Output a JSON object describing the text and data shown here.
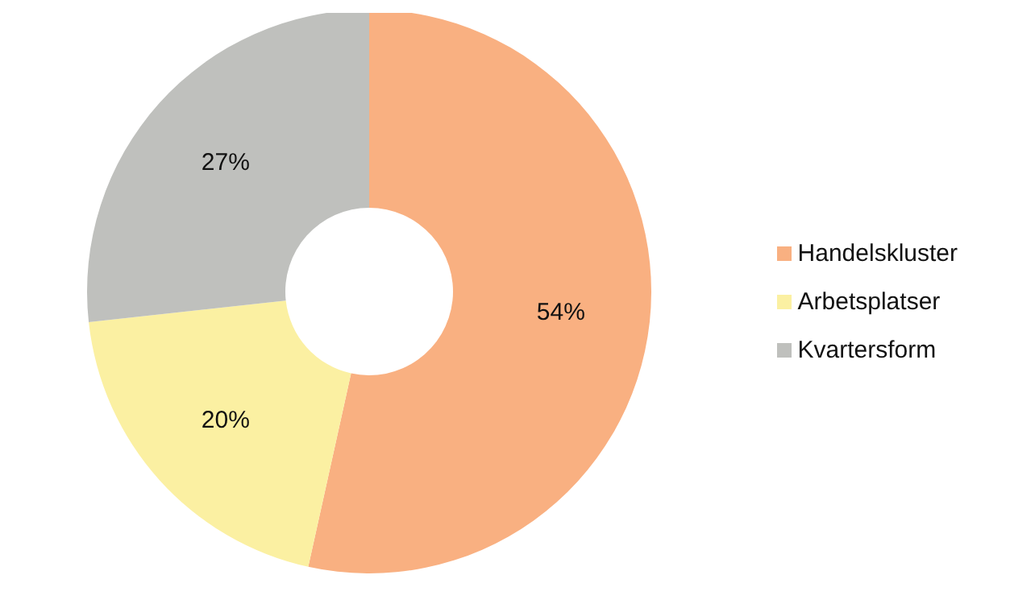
{
  "chart_data": {
    "type": "donut",
    "categories": [
      "Handelskluster",
      "Arbetsplatser",
      "Kvartersform"
    ],
    "values": [
      54,
      20,
      27
    ],
    "colors": [
      "#f9b081",
      "#fbf0a2",
      "#bfc0bd"
    ],
    "value_labels": [
      "54%",
      "20%",
      "27%"
    ],
    "legend": "right"
  }
}
